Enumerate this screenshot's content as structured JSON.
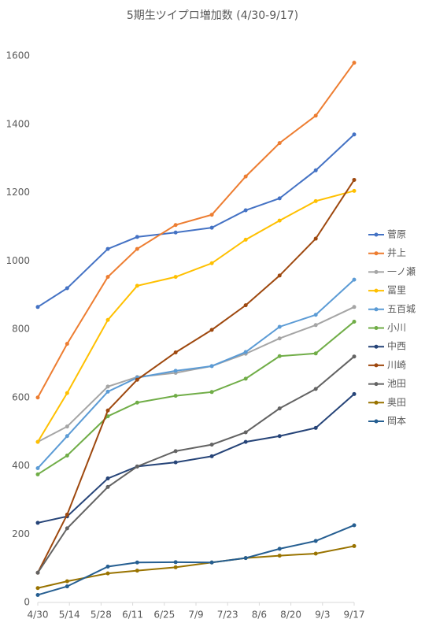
{
  "chart_data": {
    "type": "line",
    "title": "5期生ツイプロ増加数 (4/30-9/17)",
    "x": [
      0,
      13,
      31,
      44,
      61,
      77,
      92,
      107,
      123,
      140
    ],
    "xlim": [
      0,
      140
    ],
    "xticks": [
      {
        "value": 0,
        "label": "4/30"
      },
      {
        "value": 14,
        "label": "5/14"
      },
      {
        "value": 28,
        "label": "5/28"
      },
      {
        "value": 42,
        "label": "6/11"
      },
      {
        "value": 56,
        "label": "6/25"
      },
      {
        "value": 70,
        "label": "7/9"
      },
      {
        "value": 84,
        "label": "7/23"
      },
      {
        "value": 98,
        "label": "8/6"
      },
      {
        "value": 112,
        "label": "8/20"
      },
      {
        "value": 126,
        "label": "9/3"
      },
      {
        "value": 140,
        "label": "9/17"
      }
    ],
    "ylim": [
      0,
      1600
    ],
    "yticks": [
      0,
      200,
      400,
      600,
      800,
      1000,
      1200,
      1400,
      1600
    ],
    "grid": false,
    "legend": "right",
    "series": [
      {
        "name": "菅原",
        "color": "#4472c4",
        "values": [
          865,
          920,
          1035,
          1070,
          1083,
          1097,
          1148,
          1183,
          1265,
          1370
        ]
      },
      {
        "name": "井上",
        "color": "#ed7d31",
        "values": [
          600,
          757,
          953,
          1035,
          1105,
          1135,
          1247,
          1345,
          1425,
          1580
        ]
      },
      {
        "name": "一ノ瀬",
        "color": "#a5a5a5",
        "values": [
          470,
          515,
          632,
          660,
          672,
          692,
          728,
          773,
          812,
          865
        ]
      },
      {
        "name": "冨里",
        "color": "#ffc000",
        "values": [
          470,
          613,
          827,
          927,
          953,
          993,
          1062,
          1118,
          1175,
          1205
        ]
      },
      {
        "name": "五百城",
        "color": "#5b9bd5",
        "values": [
          393,
          487,
          617,
          658,
          678,
          692,
          733,
          807,
          842,
          945
        ]
      },
      {
        "name": "小川",
        "color": "#70ad47",
        "values": [
          375,
          430,
          545,
          585,
          605,
          616,
          655,
          721,
          729,
          822
        ]
      },
      {
        "name": "中西",
        "color": "#264478",
        "values": [
          233,
          252,
          363,
          398,
          410,
          428,
          470,
          487,
          511,
          610
        ]
      },
      {
        "name": "川崎",
        "color": "#9e480e",
        "values": [
          87,
          257,
          562,
          652,
          732,
          798,
          870,
          957,
          1065,
          1237
        ]
      },
      {
        "name": "池田",
        "color": "#636363",
        "values": [
          87,
          217,
          338,
          398,
          443,
          462,
          498,
          568,
          625,
          720
        ]
      },
      {
        "name": "奥田",
        "color": "#997300",
        "values": [
          42,
          62,
          85,
          93,
          103,
          117,
          130,
          137,
          143,
          165
        ]
      },
      {
        "name": "岡本",
        "color": "#255e91",
        "values": [
          22,
          47,
          105,
          117,
          118,
          117,
          130,
          157,
          180,
          226
        ]
      }
    ]
  }
}
